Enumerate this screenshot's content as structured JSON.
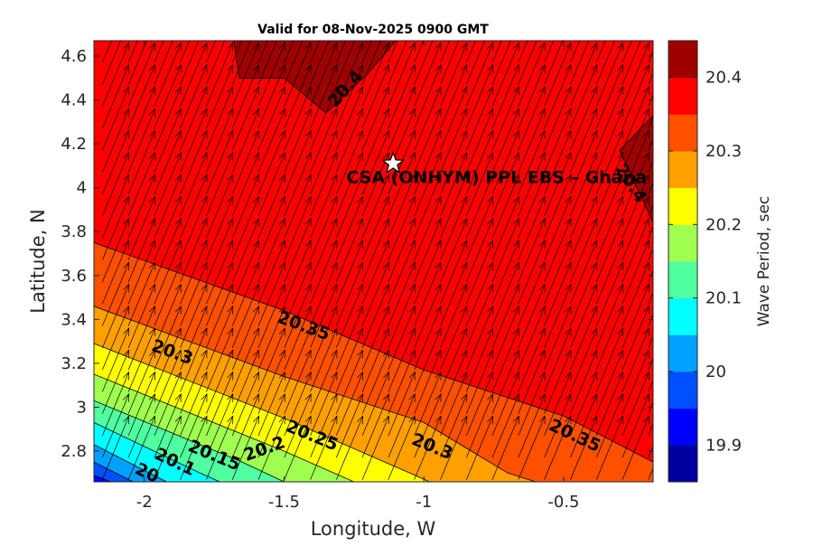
{
  "chart_data": {
    "type": "contour",
    "title": "Valid for 08-Nov-2025 0900 GMT",
    "xlabel": "Longitude, W",
    "ylabel": "Latitude, N",
    "xlim": [
      -2.18,
      -0.18
    ],
    "ylim": [
      2.66,
      4.67
    ],
    "x_ticks": [
      -2,
      -1.5,
      -1,
      -0.5
    ],
    "x_tick_labels": [
      "-2",
      "-1.5",
      "-1",
      "-0.5"
    ],
    "y_ticks": [
      2.8,
      3,
      3.2,
      3.4,
      3.6,
      3.8,
      4,
      4.2,
      4.4,
      4.6
    ],
    "y_tick_labels": [
      "2.8",
      "3",
      "3.2",
      "3.4",
      "3.6",
      "3.8",
      "4",
      "4.2",
      "4.4",
      "4.6"
    ],
    "colorbar": {
      "label": "Wave Period, sec",
      "range": [
        19.85,
        20.45
      ],
      "ticks": [
        19.9,
        20,
        20.1,
        20.2,
        20.3,
        20.4
      ],
      "tick_labels": [
        "19.9",
        "20",
        "20.1",
        "20.2",
        "20.3",
        "20.4"
      ],
      "levels": [
        19.85,
        19.9,
        19.95,
        20.0,
        20.05,
        20.1,
        20.15,
        20.2,
        20.25,
        20.3,
        20.35,
        20.4,
        20.45
      ],
      "colors": [
        "#00009f",
        "#0000ff",
        "#0050ff",
        "#00a0ff",
        "#00ffff",
        "#50ffa0",
        "#a0ff50",
        "#ffff00",
        "#ffa000",
        "#ff5000",
        "#ff0000",
        "#9f0000"
      ]
    },
    "contour_lines": [
      {
        "level": 20.4,
        "points": [
          [
            -1.68,
            4.67
          ],
          [
            -1.66,
            4.5
          ],
          [
            -1.5,
            4.5
          ],
          [
            -1.35,
            4.34
          ],
          [
            -1.2,
            4.52
          ],
          [
            -1.1,
            4.67
          ]
        ]
      },
      {
        "level": 20.4,
        "points": [
          [
            -0.18,
            4.33
          ],
          [
            -0.3,
            4.17
          ],
          [
            -0.18,
            3.84
          ]
        ]
      },
      {
        "level": 20.35,
        "points": [
          [
            -2.18,
            3.75
          ],
          [
            -1.5,
            3.44
          ],
          [
            -1.0,
            3.17
          ],
          [
            -0.5,
            2.96
          ],
          [
            -0.18,
            2.75
          ]
        ]
      },
      {
        "level": 20.3,
        "points": [
          [
            -2.18,
            3.46
          ],
          [
            -1.5,
            3.14
          ],
          [
            -1.0,
            2.93
          ],
          [
            -0.7,
            2.7
          ],
          [
            -0.6,
            2.66
          ]
        ]
      },
      {
        "level": 20.25,
        "points": [
          [
            -2.18,
            3.29
          ],
          [
            -1.5,
            2.95
          ],
          [
            -1.05,
            2.7
          ],
          [
            -0.98,
            2.66
          ]
        ]
      },
      {
        "level": 20.2,
        "points": [
          [
            -2.18,
            3.15
          ],
          [
            -1.5,
            2.8
          ],
          [
            -1.25,
            2.66
          ]
        ]
      },
      {
        "level": 20.15,
        "points": [
          [
            -2.18,
            3.03
          ],
          [
            -1.65,
            2.75
          ],
          [
            -1.5,
            2.66
          ]
        ]
      },
      {
        "level": 20.1,
        "points": [
          [
            -2.18,
            2.93
          ],
          [
            -1.8,
            2.7
          ],
          [
            -1.73,
            2.66
          ]
        ]
      },
      {
        "level": 20.05,
        "points": [
          [
            -2.18,
            2.83
          ],
          [
            -1.92,
            2.66
          ]
        ]
      },
      {
        "level": 20.0,
        "points": [
          [
            -2.18,
            2.75
          ],
          [
            -2.04,
            2.66
          ]
        ]
      },
      {
        "level": 19.95,
        "points": [
          [
            -2.18,
            2.69
          ],
          [
            -2.12,
            2.66
          ]
        ]
      }
    ],
    "contour_labels": [
      {
        "text": "20.4",
        "x": -1.28,
        "y": 4.45,
        "angle": -48
      },
      {
        "text": "20.4",
        "x": -0.26,
        "y": 4.02,
        "angle": 57
      },
      {
        "text": "20.35",
        "x": -1.43,
        "y": 3.37,
        "angle": 20
      },
      {
        "text": "20.35",
        "x": -0.46,
        "y": 2.87,
        "angle": 25
      },
      {
        "text": "20.3",
        "x": -1.9,
        "y": 3.25,
        "angle": 20
      },
      {
        "text": "20.3",
        "x": -0.97,
        "y": 2.82,
        "angle": 22
      },
      {
        "text": "20.25",
        "x": -1.4,
        "y": 2.87,
        "angle": 22
      },
      {
        "text": "20.2",
        "x": -1.57,
        "y": 2.81,
        "angle": -20
      },
      {
        "text": "20.15",
        "x": -1.75,
        "y": 2.78,
        "angle": 22
      },
      {
        "text": "20.1",
        "x": -1.89,
        "y": 2.75,
        "angle": 25
      },
      {
        "text": "20",
        "x": -1.99,
        "y": 2.7,
        "angle": 25
      }
    ],
    "vector_field": {
      "x_start": -2.15,
      "x_step": 0.093,
      "y_start": 2.67,
      "y_step": 0.1,
      "dx": 0.095,
      "dy": 0.29
    },
    "site": {
      "name": "CSA (ONHYM) PPL EBS  – Ghana",
      "lon": -1.11,
      "lat": 4.11,
      "label_lon": -0.74,
      "label_lat": 4.05
    }
  }
}
